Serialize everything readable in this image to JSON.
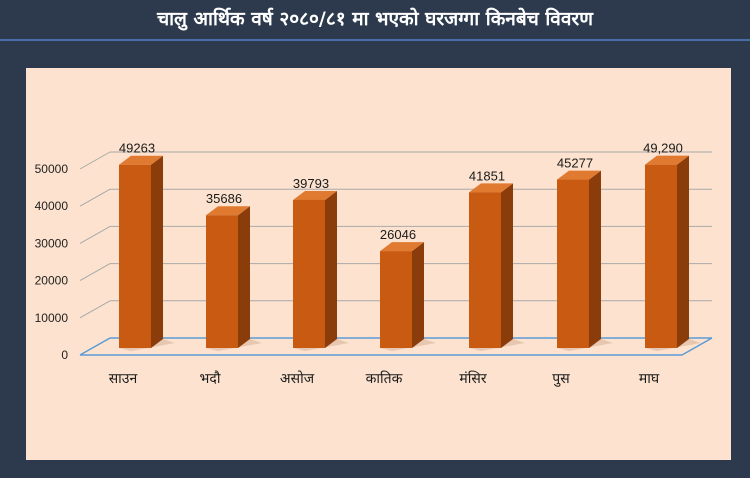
{
  "title": "चालु आर्थिक वर्ष २०८०/८१ मा भएको घरजग्गा किनबेच विवरण",
  "colors": {
    "background": "#2d3a4e",
    "panel": "#fde3cf",
    "bar_front": "#c95a12",
    "bar_side": "#8a3c0b",
    "bar_top": "#e07a30",
    "grid": "#a8a8a8",
    "floor": "#5b9bd5"
  },
  "chart_data": {
    "type": "bar",
    "categories": [
      "साउन",
      "भदौ",
      "असोज",
      "कातिक",
      "मंसिर",
      "पुस",
      "माघ"
    ],
    "values": [
      49263,
      35686,
      39793,
      26046,
      41851,
      45277,
      49290
    ],
    "data_labels": [
      "49263",
      "35686",
      "39793",
      "26046",
      "41851",
      "45277",
      "49,290"
    ],
    "y_ticks": [
      0,
      10000,
      20000,
      30000,
      40000,
      50000
    ],
    "ylim": [
      0,
      50000
    ],
    "grid": true,
    "legend": "none",
    "title": "",
    "xlabel": "",
    "ylabel": ""
  }
}
